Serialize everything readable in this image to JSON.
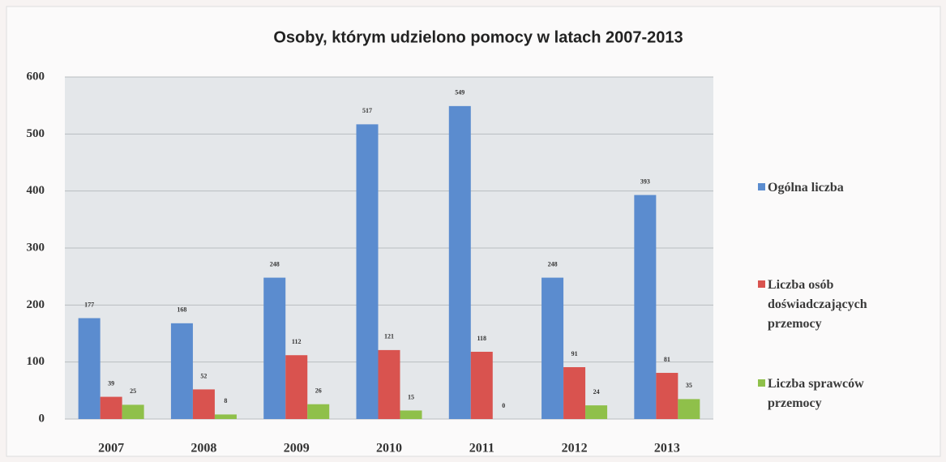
{
  "chart_data": {
    "type": "bar",
    "title": "Osoby, którym udzielono pomocy w latach 2007-2013",
    "categories": [
      "2007",
      "2008",
      "2009",
      "2010",
      "2011",
      "2012",
      "2013"
    ],
    "series": [
      {
        "name": "Ogólna liczba",
        "color": "#5b8ccf",
        "values": [
          177,
          168,
          248,
          517,
          549,
          248,
          393
        ]
      },
      {
        "name": "Liczba osób doświadczających przemocy",
        "color": "#d9534f",
        "values": [
          39,
          52,
          112,
          121,
          118,
          91,
          81
        ]
      },
      {
        "name": "Liczba sprawców przemocy",
        "color": "#8fc04a",
        "values": [
          25,
          8,
          26,
          15,
          0,
          24,
          35
        ]
      }
    ],
    "ylim": [
      0,
      600
    ],
    "yticks": [
      0,
      100,
      200,
      300,
      400,
      500,
      600
    ],
    "grid": true,
    "legend": "right"
  }
}
